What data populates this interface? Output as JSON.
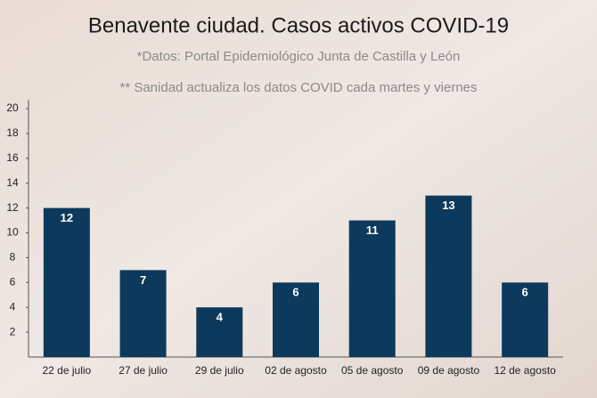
{
  "chart_data": {
    "type": "bar",
    "title": "Benavente ciudad. Casos activos COVID-19",
    "subtitles": [
      "*Datos: Portal Epidemiológico Junta de Castilla y León",
      "** Sanidad actualiza los datos COVID cada martes y viernes"
    ],
    "categories": [
      "22 de julio",
      "27 de julio",
      "29 de julio",
      "02 de agosto",
      "05 de agosto",
      "09 de agosto",
      "12 de agosto"
    ],
    "values": [
      12,
      7,
      4,
      6,
      11,
      13,
      6
    ],
    "color": "#0d3a5c",
    "ylim": [
      0,
      20
    ],
    "yticks": [
      2,
      4,
      6,
      8,
      10,
      12,
      14,
      16,
      18,
      20
    ]
  }
}
